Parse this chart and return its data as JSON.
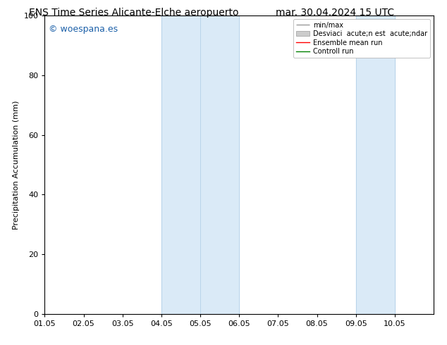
{
  "title_left": "ENS Time Series Alicante-Elche aeropuerto",
  "title_right": "mar. 30.04.2024 15 UTC",
  "ylabel": "Precipitation Accumulation (mm)",
  "xlabel": "",
  "xlim": [
    0,
    10
  ],
  "ylim": [
    0,
    100
  ],
  "yticks": [
    0,
    20,
    40,
    60,
    80,
    100
  ],
  "xtick_labels": [
    "01.05",
    "02.05",
    "03.05",
    "04.05",
    "05.05",
    "06.05",
    "07.05",
    "08.05",
    "09.05",
    "10.05"
  ],
  "xtick_positions": [
    0,
    1,
    2,
    3,
    4,
    5,
    6,
    7,
    8,
    9
  ],
  "shaded_regions": [
    {
      "xmin": 3.0,
      "xmax": 5.0,
      "color": "#daeaf7"
    },
    {
      "xmin": 8.0,
      "xmax": 9.0,
      "color": "#daeaf7"
    }
  ],
  "vertical_lines": [
    {
      "x": 3.0,
      "color": "#b8d4ea",
      "lw": 0.7
    },
    {
      "x": 4.0,
      "color": "#b8d4ea",
      "lw": 0.7
    },
    {
      "x": 5.0,
      "color": "#b8d4ea",
      "lw": 0.7
    },
    {
      "x": 8.0,
      "color": "#b8d4ea",
      "lw": 0.7
    },
    {
      "x": 9.0,
      "color": "#b8d4ea",
      "lw": 0.7
    }
  ],
  "watermark_text": "© woespana.es",
  "watermark_color": "#1a5fa8",
  "watermark_fontsize": 9,
  "legend_label_minmax": "min/max",
  "legend_label_std": "Desviaci  acute;n est  acute;ndar",
  "legend_label_ensemble": "Ensemble mean run",
  "legend_label_control": "Controll run",
  "legend_color_minmax": "#999999",
  "legend_color_std": "#cccccc",
  "legend_color_ensemble": "#ff0000",
  "legend_color_control": "#008000",
  "title_fontsize": 10,
  "axis_label_fontsize": 8,
  "tick_fontsize": 8,
  "legend_fontsize": 7,
  "bg_color": "#ffffff",
  "plot_bg_color": "#ffffff"
}
